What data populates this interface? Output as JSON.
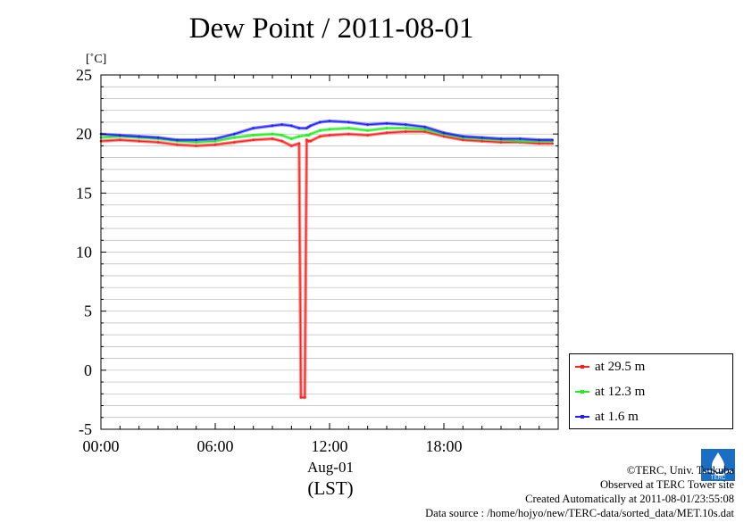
{
  "title": "Dew Point / 2011-08-01",
  "unit_label": "[˚C]",
  "x_date_label": "Aug-01",
  "x_zone_label": "(LST)",
  "x_tick_labels": [
    "00:00",
    "06:00",
    "12:00",
    "18:00"
  ],
  "y_tick_labels": [
    "25",
    "20",
    "15",
    "10",
    "5",
    "0",
    "-5"
  ],
  "legend": [
    {
      "label": "at 29.5 m",
      "color": "#ff2020"
    },
    {
      "label": "at 12.3 m",
      "color": "#20ee20"
    },
    {
      "label": "at 1.6 m",
      "color": "#2020ff"
    }
  ],
  "credits": {
    "copyright": "©TERC, Univ. Tsukuba",
    "site": "Observed at TERC Tower site",
    "created": "Created Automatically at 2011-08-01/23:55:08",
    "source": "Data source : /home/hojyo/new/TERC-data/sorted_data/MET.10s.dat"
  },
  "logo_text": "TERC",
  "chart_data": {
    "type": "line",
    "title": "Dew Point / 2011-08-01",
    "xlabel": "Aug-01 (LST)",
    "ylabel": "[˚C]",
    "xlim": [
      0,
      24
    ],
    "ylim": [
      -5,
      25
    ],
    "grid": true,
    "legend_position": "right-bottom",
    "x_unit": "hour (LST)",
    "series": [
      {
        "name": "at 29.5 m",
        "color": "#ff2020",
        "x": [
          0,
          1,
          2,
          3,
          4,
          5,
          6,
          7,
          8,
          9,
          9.5,
          10,
          10.4,
          10.5,
          10.7,
          10.8,
          10.9,
          11,
          11.5,
          12,
          13,
          14,
          15,
          16,
          17,
          18,
          19,
          20,
          21,
          22,
          23,
          23.7
        ],
        "values": [
          19.4,
          19.5,
          19.4,
          19.3,
          19.1,
          19.0,
          19.1,
          19.3,
          19.5,
          19.6,
          19.4,
          19.0,
          19.2,
          -2.3,
          -2.3,
          19.5,
          19.4,
          19.4,
          19.8,
          19.9,
          20.0,
          19.9,
          20.1,
          20.2,
          20.2,
          19.8,
          19.5,
          19.4,
          19.3,
          19.3,
          19.2,
          19.2
        ]
      },
      {
        "name": "at 12.3 m",
        "color": "#20ee20",
        "x": [
          0,
          1,
          2,
          3,
          4,
          5,
          6,
          7,
          8,
          9,
          9.5,
          10,
          10.4,
          10.8,
          10.9,
          11,
          11.5,
          12,
          13,
          14,
          15,
          16,
          17,
          18,
          19,
          20,
          21,
          22,
          23,
          23.7
        ],
        "values": [
          19.7,
          19.8,
          19.7,
          19.6,
          19.4,
          19.3,
          19.4,
          19.7,
          19.9,
          20.0,
          19.9,
          19.6,
          19.8,
          19.9,
          19.9,
          20.0,
          20.3,
          20.4,
          20.5,
          20.3,
          20.5,
          20.5,
          20.4,
          20.0,
          19.7,
          19.6,
          19.5,
          19.4,
          19.4,
          19.4
        ]
      },
      {
        "name": "at 1.6 m",
        "color": "#2020ff",
        "x": [
          0,
          1,
          2,
          3,
          4,
          5,
          6,
          7,
          8,
          9,
          9.5,
          10,
          10.4,
          10.8,
          10.9,
          11,
          11.5,
          12,
          13,
          14,
          15,
          16,
          17,
          18,
          19,
          20,
          21,
          22,
          23,
          23.7
        ],
        "values": [
          20.0,
          19.9,
          19.8,
          19.7,
          19.5,
          19.5,
          19.6,
          20.0,
          20.5,
          20.7,
          20.8,
          20.7,
          20.5,
          20.5,
          20.6,
          20.7,
          21.0,
          21.1,
          21.0,
          20.8,
          20.9,
          20.8,
          20.6,
          20.1,
          19.8,
          19.7,
          19.6,
          19.6,
          19.5,
          19.5
        ]
      }
    ]
  }
}
